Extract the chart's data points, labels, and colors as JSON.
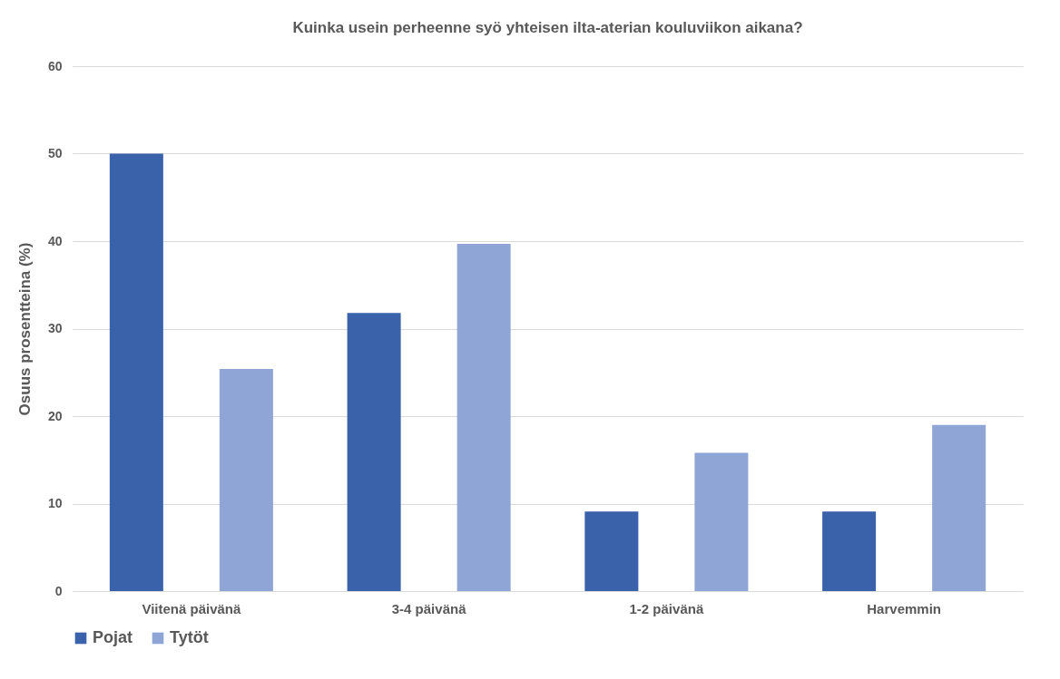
{
  "chart_data": {
    "type": "bar",
    "title": "Kuinka usein perheenne syö yhteisen ilta-aterian kouluviikon aikana?",
    "ylabel": "Osuus prosentteina (%)",
    "categories": [
      "Viitenä päivänä",
      "3-4 päivänä",
      "1-2 päivänä",
      "Harvemmin"
    ],
    "series": [
      {
        "name": "Pojat",
        "color": "#3a62ab",
        "values": [
          50,
          31.8,
          9.1,
          9.1
        ]
      },
      {
        "name": "Tytöt",
        "color": "#8fa5d5",
        "values": [
          25.4,
          39.7,
          15.8,
          19.0
        ]
      }
    ],
    "ylim": [
      0,
      60
    ],
    "yticks": [
      0,
      10,
      20,
      30,
      40,
      50,
      60
    ],
    "grid": "y",
    "legend": "bottom"
  }
}
